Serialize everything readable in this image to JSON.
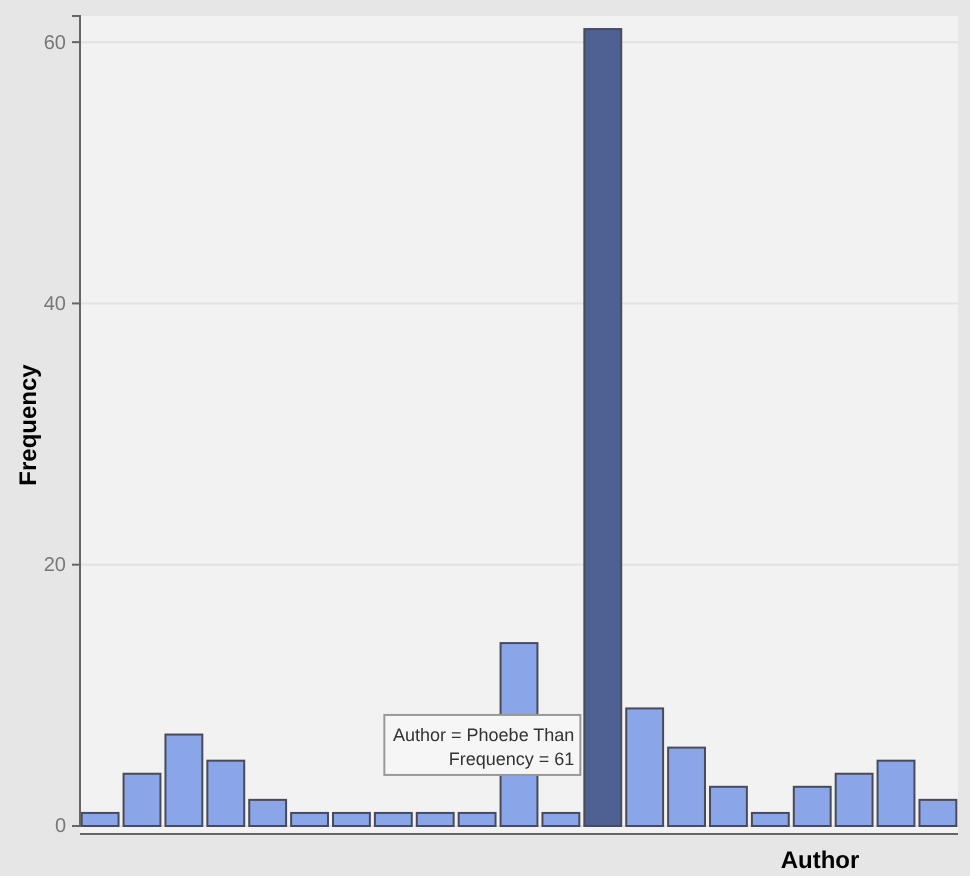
{
  "chart_data": {
    "type": "bar",
    "xlabel": "Author",
    "ylabel": "Frequency",
    "categories": [
      null,
      null,
      null,
      null,
      null,
      null,
      null,
      null,
      null,
      null,
      null,
      null,
      null,
      null,
      null,
      null,
      null,
      null,
      null,
      null,
      null
    ],
    "values": [
      1,
      4,
      7,
      5,
      2,
      1,
      1,
      1,
      1,
      1,
      14,
      1,
      61,
      9,
      6,
      3,
      1,
      3,
      4,
      5,
      2
    ],
    "colors": [
      "#8aa5e8",
      "#8aa5e8",
      "#8aa5e8",
      "#8aa5e8",
      "#8aa5e8",
      "#8aa5e8",
      "#8aa5e8",
      "#8aa5e8",
      "#8aa5e8",
      "#8aa5e8",
      "#8aa5e8",
      "#8aa5e8",
      "#4f6193",
      "#8aa5e8",
      "#8aa5e8",
      "#8aa5e8",
      "#8aa5e8",
      "#8aa5e8",
      "#8aa5e8",
      "#8aa5e8",
      "#8aa5e8"
    ],
    "ylim": [
      0,
      62
    ],
    "yticks": [
      0,
      20,
      40,
      60
    ],
    "grid": "y",
    "annotations": [
      "Author = Phoebe Than",
      "Frequency = 61"
    ]
  }
}
